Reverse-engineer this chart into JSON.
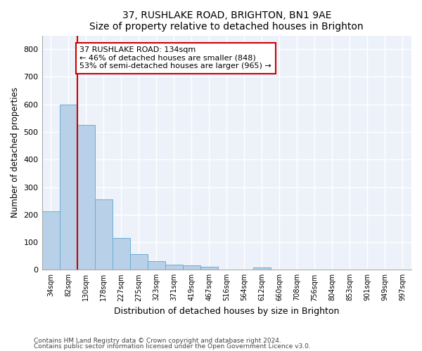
{
  "title1": "37, RUSHLAKE ROAD, BRIGHTON, BN1 9AE",
  "title2": "Size of property relative to detached houses in Brighton",
  "xlabel": "Distribution of detached houses by size in Brighton",
  "ylabel": "Number of detached properties",
  "bar_labels": [
    "34sqm",
    "82sqm",
    "130sqm",
    "178sqm",
    "227sqm",
    "275sqm",
    "323sqm",
    "371sqm",
    "419sqm",
    "467sqm",
    "516sqm",
    "564sqm",
    "612sqm",
    "660sqm",
    "708sqm",
    "756sqm",
    "804sqm",
    "853sqm",
    "901sqm",
    "949sqm",
    "997sqm"
  ],
  "bar_values": [
    213,
    600,
    525,
    255,
    115,
    57,
    32,
    19,
    16,
    12,
    0,
    0,
    8,
    0,
    0,
    0,
    0,
    0,
    0,
    0,
    0
  ],
  "bar_color": "#b8d0e8",
  "bar_edge_color": "#6aaed6",
  "property_line_color": "#cc0000",
  "annotation_text": "37 RUSHLAKE ROAD: 134sqm\n← 46% of detached houses are smaller (848)\n53% of semi-detached houses are larger (965) →",
  "annotation_box_color": "#cc0000",
  "annotation_box_facecolor": "white",
  "ylim": [
    0,
    850
  ],
  "yticks": [
    0,
    100,
    200,
    300,
    400,
    500,
    600,
    700,
    800
  ],
  "footer1": "Contains HM Land Registry data © Crown copyright and database right 2024.",
  "footer2": "Contains public sector information licensed under the Open Government Licence v3.0.",
  "plot_bg_color": "#edf2fa"
}
